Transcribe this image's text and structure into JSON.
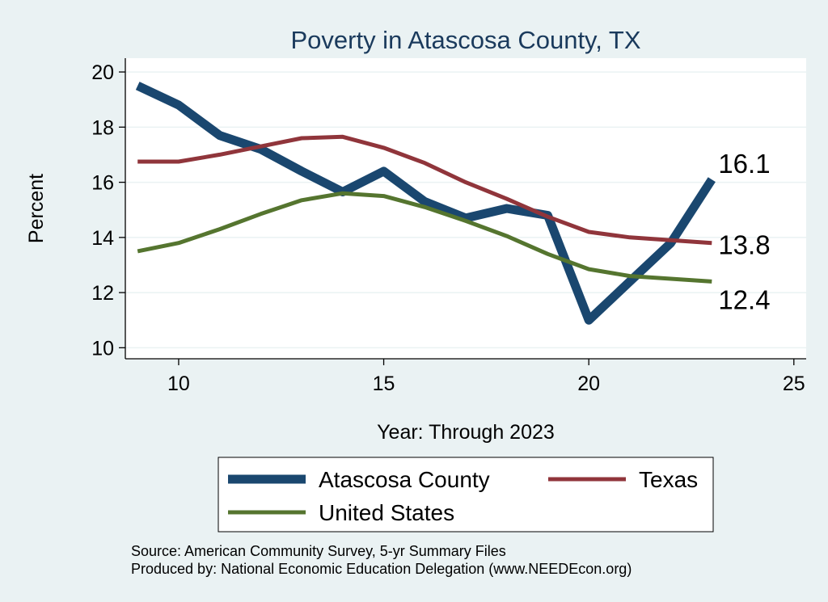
{
  "chart_data": {
    "type": "line",
    "title": "Poverty in Atascosa County, TX",
    "xlabel": "Year: Through 2023",
    "ylabel": "Percent",
    "xlim": [
      8.7,
      25.3
    ],
    "ylim": [
      9.6,
      20.5
    ],
    "xticks": [
      10,
      15,
      20,
      25
    ],
    "yticks": [
      10,
      12,
      14,
      16,
      18,
      20
    ],
    "grid": true,
    "legend_position": "bottom",
    "series": [
      {
        "name": "Atascosa County",
        "color": "#1a476f",
        "x": [
          9,
          10,
          11,
          12,
          13,
          14,
          15,
          16,
          17,
          18,
          19,
          20,
          21,
          22,
          23
        ],
        "values": [
          19.5,
          18.8,
          17.7,
          17.2,
          16.4,
          15.65,
          16.4,
          15.3,
          14.7,
          15.05,
          14.8,
          11.0,
          12.4,
          13.8,
          16.1
        ],
        "end_label": "16.1"
      },
      {
        "name": "Texas",
        "color": "#90353b",
        "x": [
          9,
          10,
          11,
          12,
          13,
          14,
          15,
          16,
          17,
          18,
          19,
          20,
          21,
          22,
          23
        ],
        "values": [
          16.75,
          16.75,
          17.0,
          17.3,
          17.6,
          17.65,
          17.25,
          16.7,
          16.0,
          15.4,
          14.75,
          14.2,
          14.0,
          13.9,
          13.8
        ],
        "end_label": "13.8"
      },
      {
        "name": "United States",
        "color": "#55752f",
        "x": [
          9,
          10,
          11,
          12,
          13,
          14,
          15,
          16,
          17,
          18,
          19,
          20,
          21,
          22,
          23
        ],
        "values": [
          13.5,
          13.8,
          14.3,
          14.85,
          15.35,
          15.6,
          15.5,
          15.1,
          14.6,
          14.05,
          13.4,
          12.85,
          12.6,
          12.5,
          12.4
        ],
        "end_label": "12.4"
      }
    ]
  },
  "notes": {
    "source": "Source: American Community Survey, 5-yr Summary Files",
    "produced_by": "Produced by: National Economic Education Delegation (www.NEEDEcon.org)"
  }
}
